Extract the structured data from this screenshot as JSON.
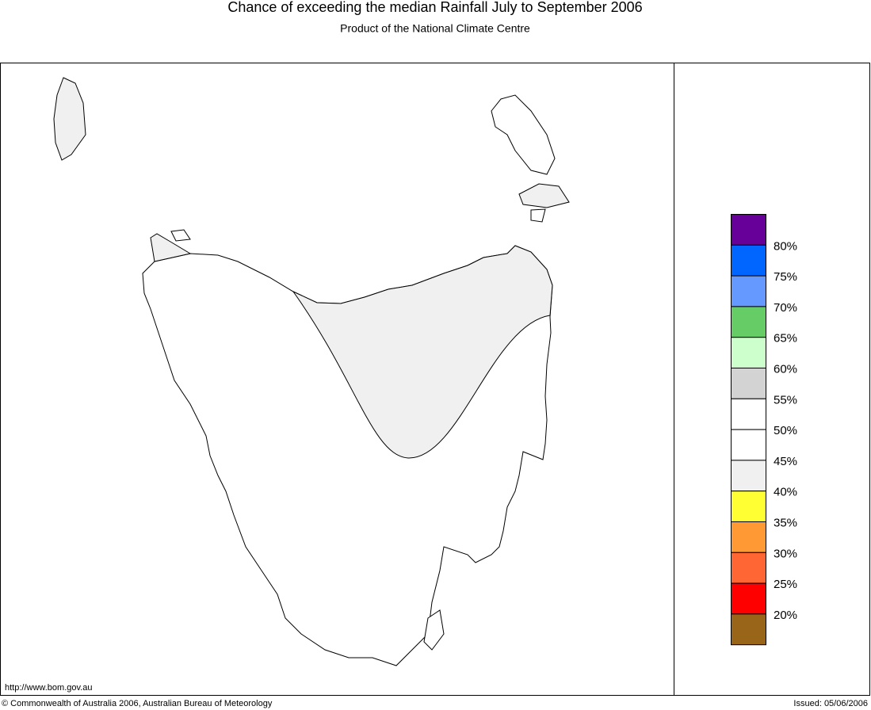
{
  "header": {
    "title": "Chance of exceeding the median Rainfall July to September 2006",
    "subtitle": "Product of the National Climate Centre"
  },
  "legend": {
    "colors": [
      "#660099",
      "#0066ff",
      "#6699ff",
      "#66cc66",
      "#ccffcc",
      "#d3d3d3",
      "#ffffff",
      "#ffffff",
      "#f0f0f0",
      "#ffff33",
      "#ff9933",
      "#ff6633",
      "#ff0000",
      "#996619"
    ],
    "labels": [
      "80%",
      "75%",
      "70%",
      "65%",
      "60%",
      "55%",
      "50%",
      "45%",
      "40%",
      "35%",
      "30%",
      "25%",
      "20%"
    ]
  },
  "footer": {
    "url": "http://www.bom.gov.au",
    "copyright": "© Commonwealth of Australia 2006, Australian Bureau of Meteorology",
    "issued": "Issued: 05/06/2006"
  }
}
